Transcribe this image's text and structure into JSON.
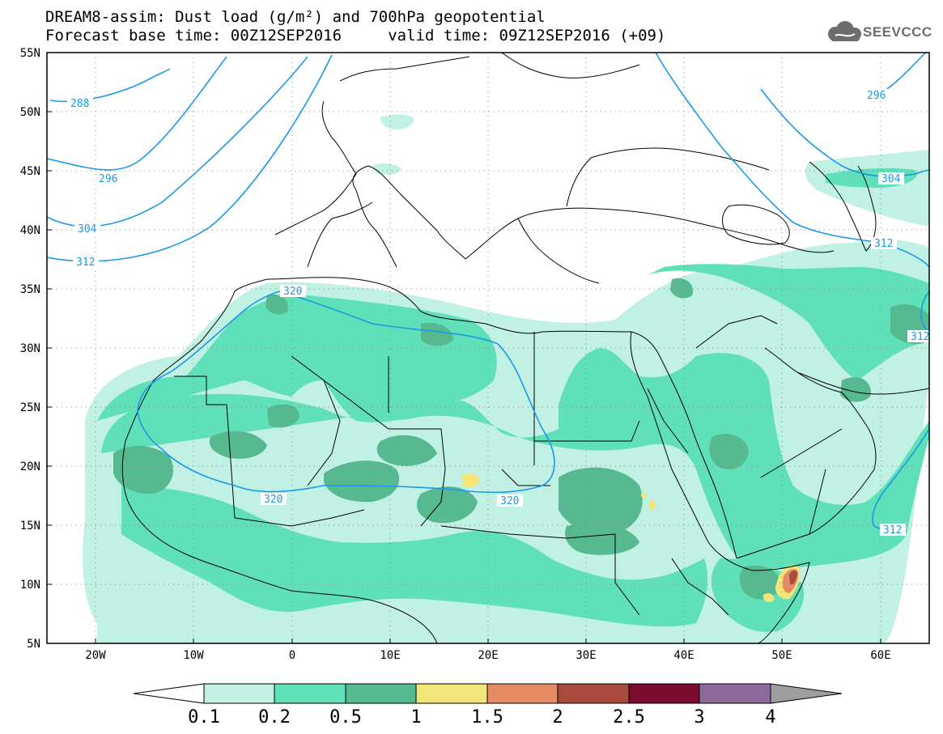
{
  "title": {
    "line1": "DREAM8-assim: Dust load (g/m²) and 700hPa geopotential",
    "line2": "Forecast base time: 00Z12SEP2016     valid time: 09Z12SEP2016 (+09)"
  },
  "logo": {
    "text": "SEEVCCC",
    "icon": "cloud-icon"
  },
  "map": {
    "lon_range": [
      -25,
      65
    ],
    "lat_range": [
      5,
      55
    ],
    "lat_ticks": [
      {
        "value": 55,
        "label": "55N"
      },
      {
        "value": 50,
        "label": "50N"
      },
      {
        "value": 45,
        "label": "45N"
      },
      {
        "value": 40,
        "label": "40N"
      },
      {
        "value": 35,
        "label": "35N"
      },
      {
        "value": 30,
        "label": "30N"
      },
      {
        "value": 25,
        "label": "25N"
      },
      {
        "value": 20,
        "label": "20N"
      },
      {
        "value": 15,
        "label": "15N"
      },
      {
        "value": 10,
        "label": "10N"
      },
      {
        "value": 5,
        "label": "5N"
      }
    ],
    "lon_ticks": [
      {
        "value": -20,
        "label": "20W"
      },
      {
        "value": -10,
        "label": "10W"
      },
      {
        "value": 0,
        "label": "0"
      },
      {
        "value": 10,
        "label": "10E"
      },
      {
        "value": 20,
        "label": "20E"
      },
      {
        "value": 30,
        "label": "30E"
      },
      {
        "value": 40,
        "label": "40E"
      },
      {
        "value": 50,
        "label": "50E"
      },
      {
        "value": 60,
        "label": "60E"
      }
    ],
    "contour_labels": [
      "288",
      "296",
      "304",
      "312",
      "320",
      "320",
      "320",
      "296",
      "304",
      "312",
      "312",
      "312"
    ],
    "contour_color": "#1a9ae6"
  },
  "colorbar": {
    "labels": [
      "0.1",
      "0.2",
      "0.5",
      "1",
      "1.5",
      "2",
      "2.5",
      "3",
      "4"
    ],
    "colors": [
      "#c1f0e4",
      "#5fe0b8",
      "#56b990",
      "#f2e57a",
      "#e58c64",
      "#a84a3c",
      "#7a0d2f",
      "#8e6a9c",
      "#9e9e9e"
    ]
  }
}
